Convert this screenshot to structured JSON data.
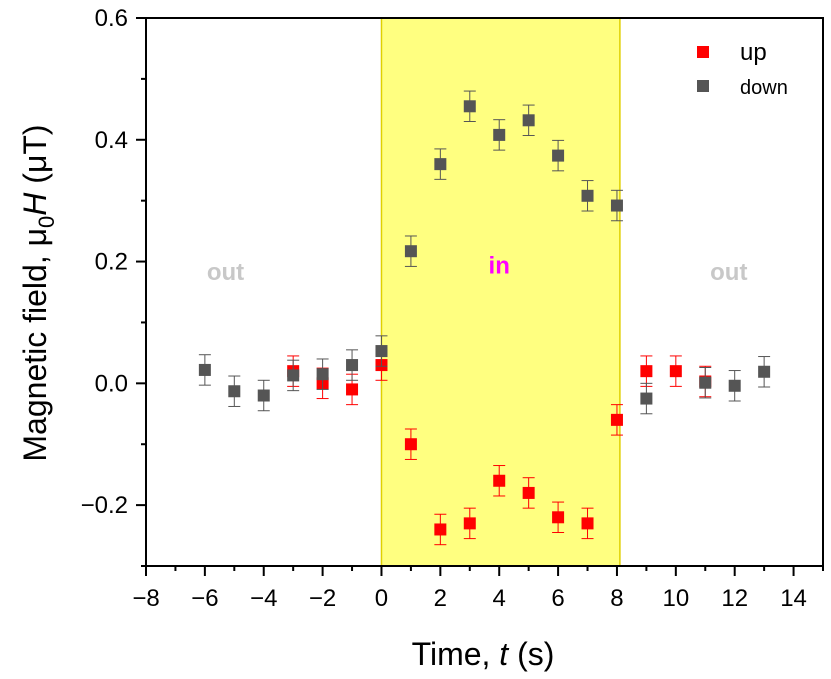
{
  "chart_data": {
    "type": "scatter",
    "xlabel_prefix": "Time, ",
    "xlabel_var": "t",
    "xlabel_suffix": " (s)",
    "ylabel_prefix": "Magnetic field, μ",
    "ylabel_sub": "0",
    "ylabel_var": "H",
    "ylabel_suffix": " (μT)",
    "xlim": [
      -8,
      15
    ],
    "ylim": [
      -0.3,
      0.6
    ],
    "xticks": [
      -8,
      -6,
      -4,
      -2,
      0,
      2,
      4,
      6,
      8,
      10,
      12,
      14
    ],
    "xtick_labels": [
      "−8",
      "−6",
      "−4",
      "−2",
      "0",
      "2",
      "4",
      "6",
      "8",
      "10",
      "12",
      "14"
    ],
    "yticks": [
      -0.2,
      0.0,
      0.2,
      0.4,
      0.6
    ],
    "ytick_labels": [
      "−0.2",
      "0.0",
      "0.2",
      "0.4",
      "0.6"
    ],
    "highlight_region": {
      "x_range": [
        0,
        8.1
      ],
      "color": "#ffff80",
      "label": "in",
      "label_color": "#ff00ff"
    },
    "out_labels": [
      {
        "text": "out",
        "x": -5.3,
        "y": 0.17
      },
      {
        "text": "out",
        "x": 11.8,
        "y": 0.17
      }
    ],
    "in_label": {
      "x": 4.0,
      "y": 0.18
    },
    "legend_position": "top-right",
    "series": [
      {
        "name": "up",
        "color": "#ff0000",
        "x": [
          -3,
          -2,
          -1,
          0,
          1,
          2,
          3,
          4,
          5,
          6,
          7,
          8,
          9,
          10,
          11
        ],
        "y": [
          0.02,
          0.0,
          -0.01,
          0.03,
          -0.1,
          -0.24,
          -0.23,
          -0.16,
          -0.18,
          -0.22,
          -0.23,
          -0.06,
          0.02,
          0.02,
          0.003
        ],
        "err": 0.025
      },
      {
        "name": "down",
        "color": "#555555",
        "x": [
          -6,
          -5,
          -4,
          -3,
          -2,
          -1,
          0,
          1,
          2,
          3,
          4,
          5,
          6,
          7,
          8,
          9,
          11,
          12,
          13
        ],
        "y": [
          0.022,
          -0.013,
          -0.02,
          0.013,
          0.015,
          0.03,
          0.053,
          0.217,
          0.36,
          0.455,
          0.408,
          0.432,
          0.374,
          0.308,
          0.292,
          -0.025,
          0.001,
          -0.004,
          0.019
        ],
        "err": 0.025
      }
    ]
  }
}
